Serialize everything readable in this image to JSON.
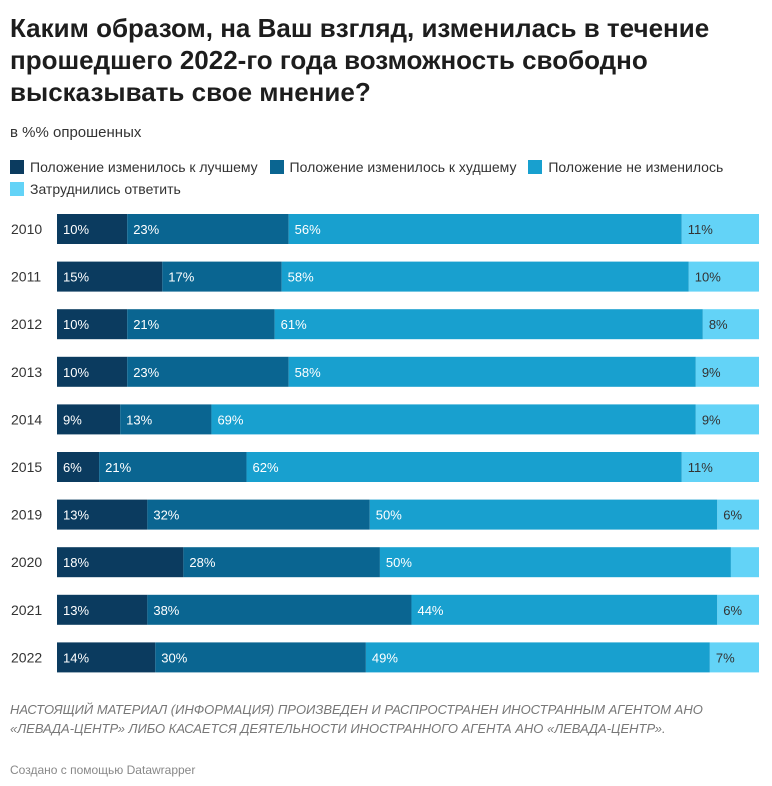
{
  "title": "Каким образом, на Ваш взгляд, изменилась в течение прошедшего 2022-го года возможность свободно высказывать свое мнение?",
  "subtitle": "в %% опрошенных",
  "note": "НАСТОЯЩИЙ МАТЕРИАЛ (ИНФОРМАЦИЯ) ПРОИЗВЕДЕН И РАСПРОСТРАНЕН ИНОСТРАННЫМ АГЕНТОМ АНО «ЛЕВАДА-ЦЕНТР» ЛИБО КАСАЕТСЯ ДЕЯТЕЛЬНОСТИ ИНОСТРАННОГО АГЕНТА АНО «ЛЕВАДА-ЦЕНТР».",
  "credit": "Создано с помощью Datawrapper",
  "chart_data": {
    "type": "bar",
    "orientation": "horizontal",
    "stacked": true,
    "categories": [
      "2010",
      "2011",
      "2012",
      "2013",
      "2014",
      "2015",
      "2019",
      "2020",
      "2021",
      "2022"
    ],
    "series": [
      {
        "name": "Положение изменилось к лучшему",
        "color": "#0b3b5f",
        "values": [
          10,
          15,
          10,
          10,
          9,
          6,
          13,
          18,
          13,
          14
        ],
        "labels": [
          "10%",
          "15%",
          "10%",
          "10%",
          "9%",
          "6%",
          "13%",
          "18%",
          "13%",
          "14%"
        ]
      },
      {
        "name": "Положение изменилось к худшему",
        "color": "#0a6591",
        "values": [
          23,
          17,
          21,
          23,
          13,
          21,
          32,
          28,
          38,
          30
        ],
        "labels": [
          "23%",
          "17%",
          "21%",
          "23%",
          "13%",
          "21%",
          "32%",
          "28%",
          "38%",
          "30%"
        ]
      },
      {
        "name": "Положение не изменилось",
        "color": "#18a0cf",
        "values": [
          56,
          58,
          61,
          58,
          69,
          62,
          50,
          50,
          44,
          49
        ],
        "labels": [
          "56%",
          "58%",
          "61%",
          "58%",
          "69%",
          "62%",
          "50%",
          "50%",
          "44%",
          "49%"
        ]
      },
      {
        "name": "Затруднились ответить",
        "color": "#63d3f7",
        "values": [
          11,
          10,
          8,
          9,
          9,
          11,
          6,
          4,
          6,
          7
        ],
        "labels": [
          "11%",
          "10%",
          "8%",
          "9%",
          "9%",
          "11%",
          "6%",
          "",
          "6%",
          "7%"
        ]
      }
    ],
    "xlim": [
      0,
      100
    ],
    "legend": "top"
  }
}
